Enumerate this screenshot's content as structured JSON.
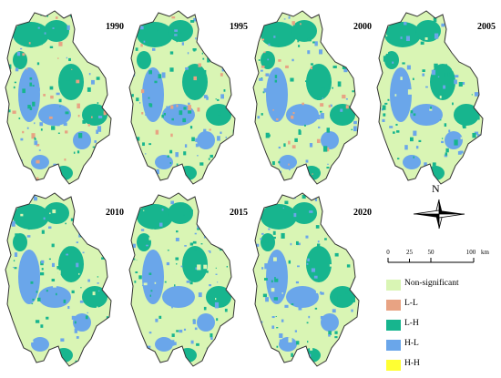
{
  "panels": [
    {
      "year": "1990"
    },
    {
      "year": "1995"
    },
    {
      "year": "2000"
    },
    {
      "year": "2005"
    },
    {
      "year": "2010"
    },
    {
      "year": "2015"
    },
    {
      "year": "2020"
    }
  ],
  "north_arrow": {
    "label": "N"
  },
  "scale_bar": {
    "ticks": [
      "0",
      "25",
      "50",
      "100"
    ],
    "unit": "km"
  },
  "legend": {
    "items": [
      {
        "label": "Non-significant",
        "color": "#d9f5b4"
      },
      {
        "label": "L-L",
        "color": "#e8a383"
      },
      {
        "label": "L-H",
        "color": "#17b58e"
      },
      {
        "label": "H-L",
        "color": "#6aa6ea"
      },
      {
        "label": "H-H",
        "color": "#ffff33"
      }
    ]
  },
  "palette": {
    "background": "#d9f5b4",
    "boundary": "#333333"
  }
}
